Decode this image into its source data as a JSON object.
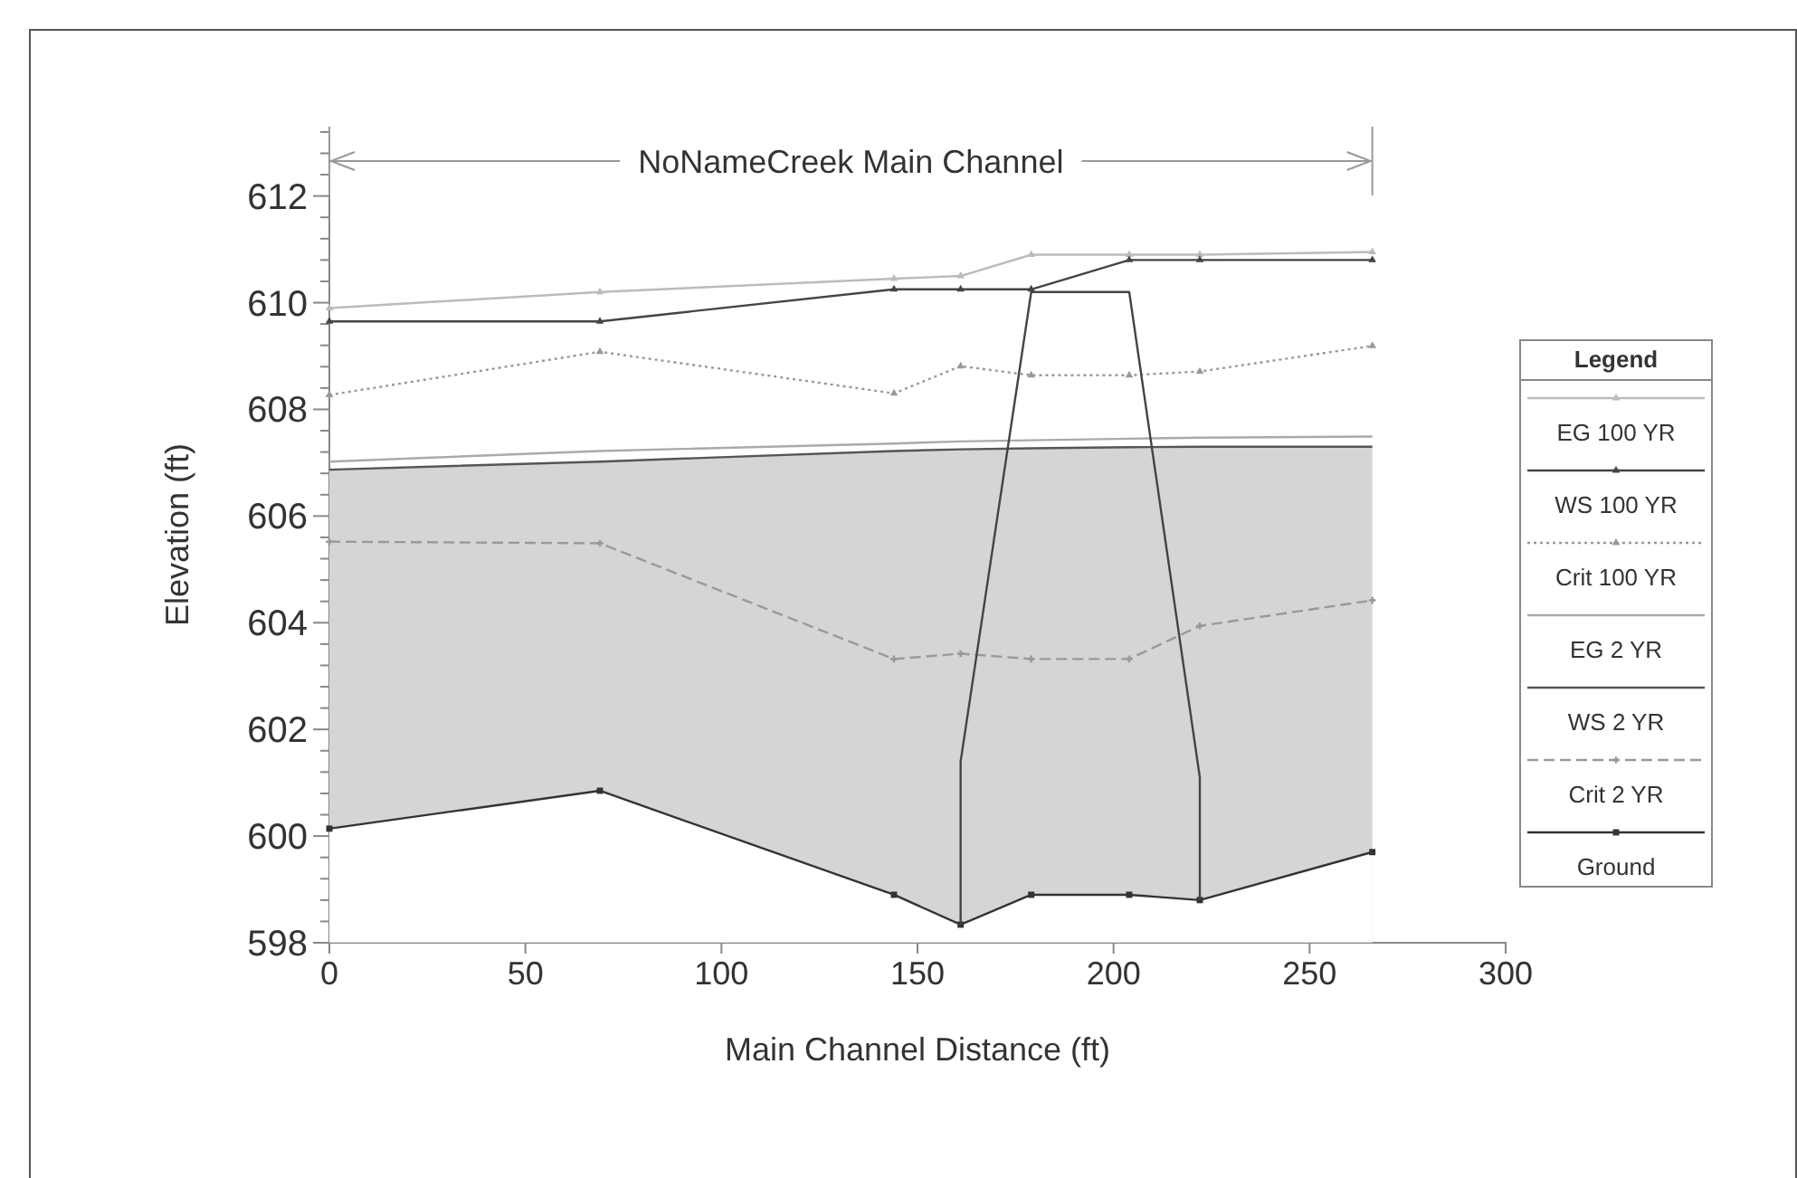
{
  "chart_data": {
    "type": "line",
    "title": "NoNameCreek Main Channel",
    "xlabel": "Main Channel Distance (ft)",
    "ylabel": "Elevation (ft)",
    "legend_title": "Legend",
    "legend": "right",
    "grid": false,
    "xlim": [
      0,
      300
    ],
    "xticks": [
      0,
      50,
      100,
      150,
      200,
      250,
      300
    ],
    "ylim": [
      598,
      613.3
    ],
    "yticks": [
      598,
      {
        "value": 598.4,
        "label": null
      },
      {
        "value": 598.8,
        "label": null
      },
      {
        "value": 599.2,
        "label": null
      },
      {
        "value": 599.6,
        "label": null
      },
      600,
      {
        "value": 600.4,
        "label": null
      },
      {
        "value": 600.8,
        "label": null
      },
      {
        "value": 601.2,
        "label": null
      },
      {
        "value": 601.6,
        "label": null
      },
      602,
      {
        "value": 602.4,
        "label": null
      },
      {
        "value": 602.8,
        "label": null
      },
      {
        "value": 603.2,
        "label": null
      },
      {
        "value": 603.6,
        "label": null
      },
      604,
      {
        "value": 604.4,
        "label": null
      },
      {
        "value": 604.8,
        "label": null
      },
      {
        "value": 605.2,
        "label": null
      },
      {
        "value": 605.6,
        "label": null
      },
      606,
      {
        "value": 606.4,
        "label": null
      },
      {
        "value": 606.8,
        "label": null
      },
      {
        "value": 607.2,
        "label": null
      },
      {
        "value": 607.6,
        "label": null
      },
      608,
      {
        "value": 608.4,
        "label": null
      },
      {
        "value": 608.8,
        "label": null
      },
      {
        "value": 609.2,
        "label": null
      },
      {
        "value": 609.6,
        "label": null
      },
      610,
      {
        "value": 610.4,
        "label": null
      },
      {
        "value": 610.8,
        "label": null
      },
      {
        "value": 611.2,
        "label": null
      },
      {
        "value": 611.6,
        "label": null
      },
      612,
      {
        "value": 612.4,
        "label": null
      },
      {
        "value": 612.8,
        "label": null
      },
      {
        "value": 613.2,
        "label": null
      }
    ],
    "x": [
      0,
      69,
      144,
      161,
      179,
      204,
      222,
      266
    ],
    "series": [
      {
        "name": "EG  100 YR",
        "color": "#bbbbbb",
        "marker": "triangle",
        "line_style": "solid",
        "values": [
          609.9,
          610.2,
          610.45,
          610.5,
          610.9,
          610.9,
          610.9,
          610.95
        ]
      },
      {
        "name": "WS  100 YR",
        "color": "#444444",
        "marker": "triangle",
        "line_style": "solid",
        "values": [
          609.65,
          609.65,
          610.25,
          610.25,
          610.25,
          610.8,
          610.8,
          610.8
        ]
      },
      {
        "name": "Crit  100 YR",
        "color": "#999999",
        "marker": "triangle",
        "line_style": "dotted",
        "values": [
          608.27,
          609.08,
          608.3,
          608.81,
          608.64,
          608.64,
          608.71,
          609.19
        ]
      },
      {
        "name": "EG  2 YR",
        "color": "#aaaaaa",
        "marker": "none",
        "line_style": "solid",
        "values": [
          607.02,
          607.22,
          607.36,
          607.4,
          607.42,
          607.45,
          607.47,
          607.49
        ]
      },
      {
        "name": "WS  2 YR",
        "type": "area",
        "color": "#555555",
        "marker": "none",
        "line_style": "solid",
        "values": [
          606.87,
          607.02,
          607.22,
          607.25,
          607.27,
          607.29,
          607.3,
          607.3
        ]
      },
      {
        "name": "Crit  2 YR",
        "color": "#999999",
        "marker": "cross",
        "line_style": "dashed",
        "values": [
          605.52,
          605.49,
          603.32,
          603.42,
          603.32,
          603.32,
          603.94,
          604.42
        ]
      },
      {
        "name": "Ground",
        "color": "#333333",
        "marker": "square",
        "line_style": "solid",
        "values": [
          600.14,
          600.85,
          598.9,
          598.34,
          598.9,
          598.9,
          598.8,
          599.7
        ]
      },
      {
        "color": "#444444",
        "marker": "none",
        "line_style": "solid",
        "x": [
          161,
          161,
          179,
          204,
          222,
          222
        ],
        "values": [
          598.34,
          601.4,
          610.2,
          610.2,
          601.1,
          598.8
        ]
      }
    ]
  }
}
